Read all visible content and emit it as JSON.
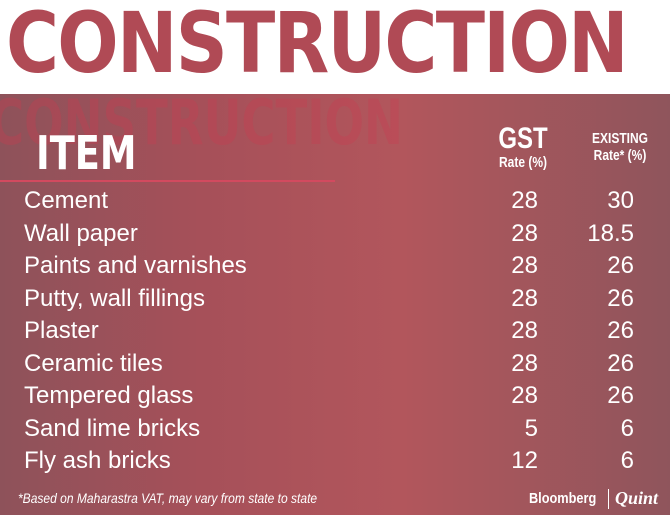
{
  "title": "CONSTRUCTION",
  "chart_data": {
    "type": "table",
    "title": "CONSTRUCTION",
    "columns": [
      "ITEM",
      "GST Rate (%)",
      "EXISTING Rate* (%)"
    ],
    "headers": {
      "item": "ITEM",
      "gst_top": "GST",
      "gst_bottom": "Rate (%)",
      "existing_top": "EXISTING",
      "existing_bottom": "Rate* (%)"
    },
    "rows": [
      {
        "item": "Cement",
        "gst": "28",
        "existing": "30"
      },
      {
        "item": "Wall paper",
        "gst": "28",
        "existing": "18.5"
      },
      {
        "item": "Paints and varnishes",
        "gst": "28",
        "existing": "26"
      },
      {
        "item": "Putty, wall fillings",
        "gst": "28",
        "existing": "26"
      },
      {
        "item": "Plaster",
        "gst": "28",
        "existing": "26"
      },
      {
        "item": "Ceramic tiles",
        "gst": "28",
        "existing": "26"
      },
      {
        "item": "Tempered glass",
        "gst": "28",
        "existing": "26"
      },
      {
        "item": "Sand lime bricks",
        "gst": "5",
        "existing": "6"
      },
      {
        "item": "Fly ash bricks",
        "gst": "12",
        "existing": "6"
      }
    ]
  },
  "footnote": "*Based on Maharastra VAT, may vary from state to state",
  "logo": {
    "left": "Bloomberg",
    "right": "Quint"
  },
  "colors": {
    "title": "#b04a55",
    "panel": "#a65059",
    "rule": "#d24a5f"
  }
}
